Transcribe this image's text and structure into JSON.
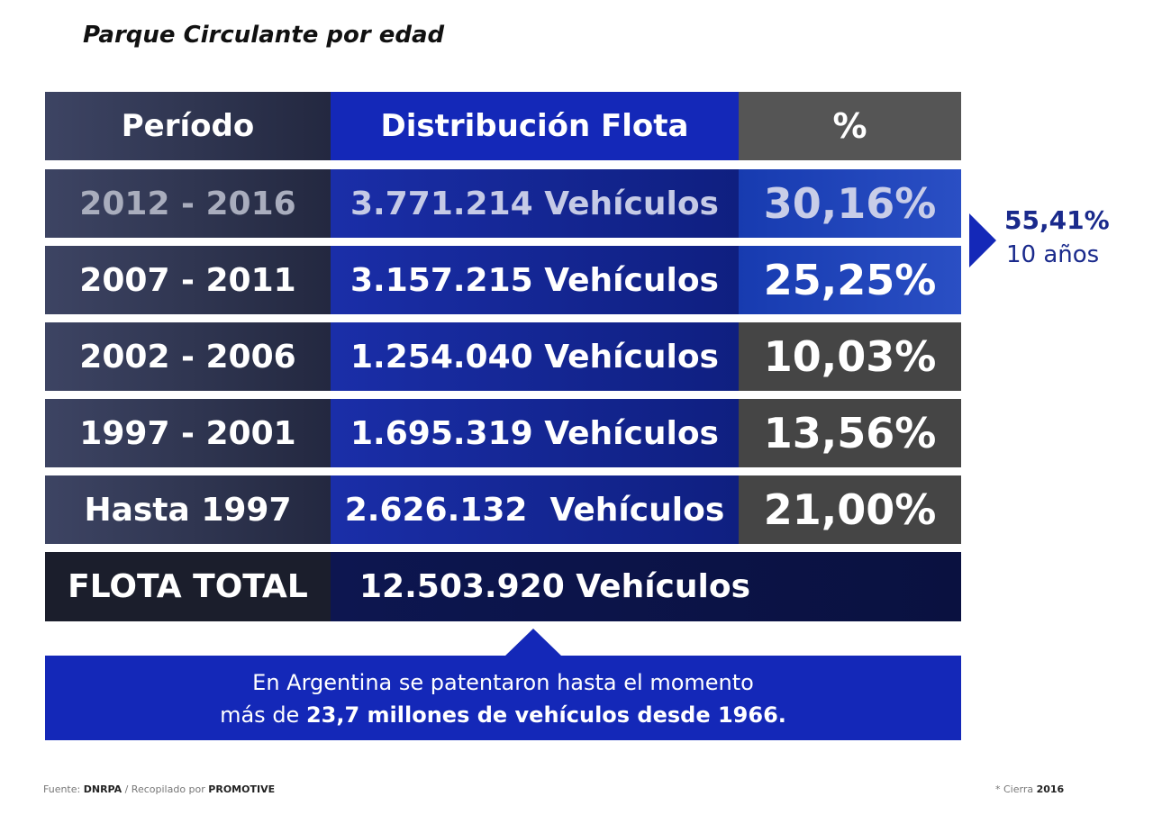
{
  "title": "Parque Circulante por edad",
  "table": {
    "header": [
      "Período",
      "Distribución Flota",
      "%"
    ],
    "rows": [
      [
        "2012 - 2016",
        "3.771.214 Vehículos",
        "30,16%"
      ],
      [
        "2007 - 2011",
        "3.157.215 Vehículos",
        "25,25%"
      ],
      [
        "2002 - 2006",
        "1.254.040 Vehículos",
        "10,03%"
      ],
      [
        "1997 - 2001",
        "1.695.319 Vehículos",
        "13,56%"
      ],
      [
        "Hasta 1997",
        "2.626.132  Vehículos",
        "21,00%"
      ]
    ],
    "total": [
      "FLOTA TOTAL",
      "12.503.920 Vehículos"
    ]
  },
  "side_note": {
    "value": "55,41%",
    "label": "10 años"
  },
  "callout": {
    "line1": "En Argentina se patentaron hasta el momento",
    "line2_prefix": "más de",
    "line2_bold": "23,7 millones de vehículos desde 1966."
  },
  "footer": {
    "source_label": "Fuente:",
    "source": "DNRPA",
    "compiled_label": "/ Recopilado por",
    "compiler": "PROMOTIVE",
    "note_label": "* Cierra",
    "note_year": "2016"
  }
}
